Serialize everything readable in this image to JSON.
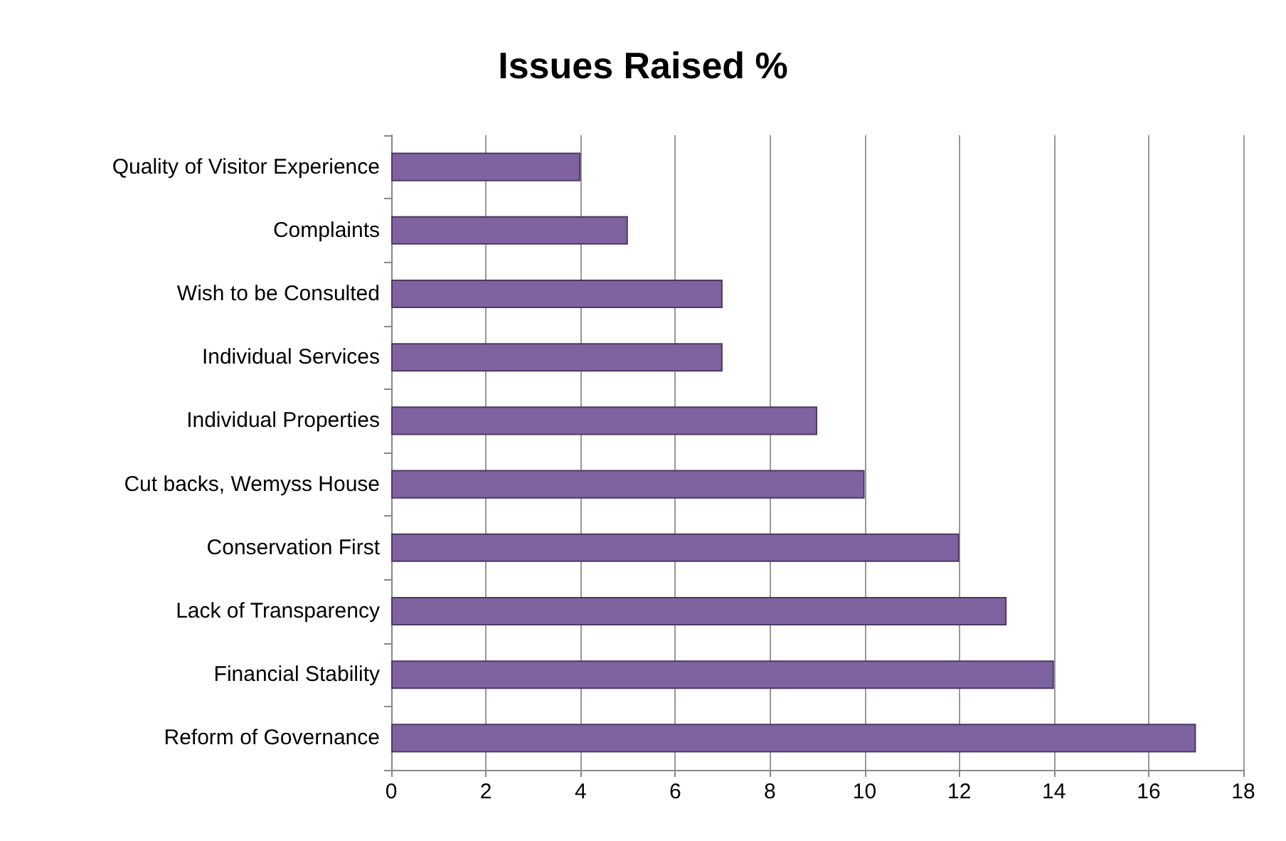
{
  "chart_data": {
    "type": "bar",
    "orientation": "horizontal",
    "title": "Issues Raised %",
    "categories": [
      "Quality of Visitor Experience",
      "Complaints",
      "Wish to be Consulted",
      "Individual Services",
      "Individual Properties",
      "Cut backs, Wemyss House",
      "Conservation First",
      "Lack of Transparency",
      "Financial Stability",
      "Reform of Governance"
    ],
    "values": [
      4,
      5,
      7,
      7,
      9,
      10,
      12,
      13,
      14,
      17
    ],
    "color": "#7f62a0",
    "xlim": [
      0,
      18
    ],
    "xticks": [
      0,
      2,
      4,
      6,
      8,
      10,
      12,
      14,
      16,
      18
    ],
    "grid": "x"
  }
}
